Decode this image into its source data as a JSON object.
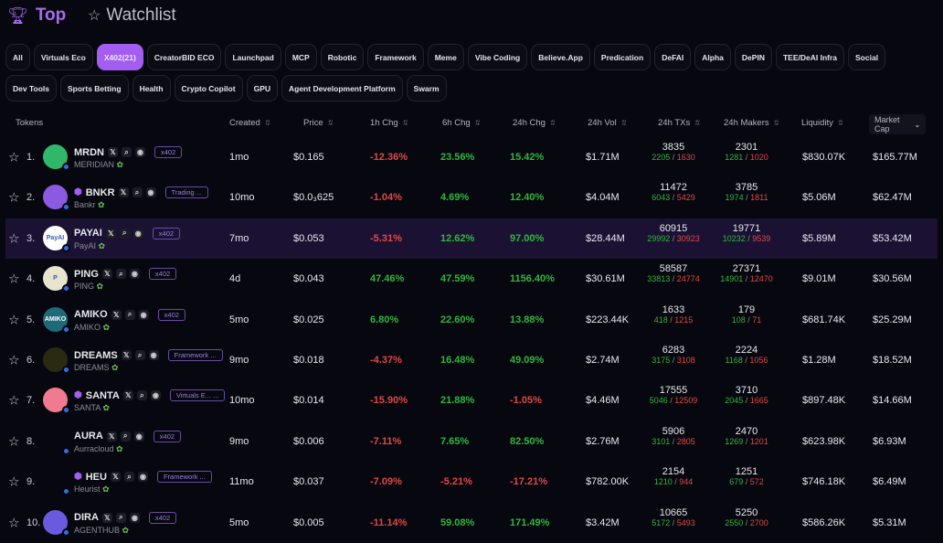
{
  "header": {
    "top_label": "Top",
    "watchlist_label": "Watchlist"
  },
  "tabs_row1": [
    "All",
    "Virtuals Eco",
    "X402(21)",
    "CreatorBID ECO",
    "Launchpad",
    "MCP",
    "Robotic",
    "Framework",
    "Meme",
    "Vibe Coding",
    "Believe.App",
    "Predication",
    "DeFAI",
    "Alpha",
    "DePIN",
    "TEE/DeAI Infra",
    "Social"
  ],
  "tabs_row2": [
    "Dev Tools",
    "Sports Betting",
    "Health",
    "Crypto Copilot",
    "GPU",
    "Agent Development Platform",
    "Swarm"
  ],
  "active_tab": "X402(21)",
  "columns": {
    "tokens": "Tokens",
    "created": "Created",
    "price": "Price",
    "h1": "1h Chg",
    "h6": "6h Chg",
    "h24": "24h Chg",
    "vol": "24h Vol",
    "txs": "24h TXs",
    "makers": "24h Makers",
    "liq": "Liquidity",
    "mcap": "Market Cap"
  },
  "colors": {
    "accent": "#a35df0",
    "up": "#2fb83c",
    "down": "#e04848",
    "highlight": "#1b1233"
  },
  "rows": [
    {
      "rank": "1.",
      "symbol": "MRDN",
      "name": "MERIDIAN",
      "verified": false,
      "tag": "x402",
      "created": "1mo",
      "price": "$0.165",
      "h1": "-12.36%",
      "h6": "23.56%",
      "h24": "15.42%",
      "vol": "$1.71M",
      "txs": "3835",
      "buys": "2205",
      "sells": "1630",
      "makers": "2301",
      "mb": "1281",
      "ms": "1020",
      "liq": "$830.07K",
      "mcap": "$165.77M",
      "logo_color": "#2fb86a",
      "logo_text": ""
    },
    {
      "rank": "2.",
      "symbol": "BNKR",
      "name": "Bankr",
      "verified": true,
      "tag": "Trading ...",
      "created": "10mo",
      "price": "$0.0₃625",
      "h1": "-1.04%",
      "h6": "4.69%",
      "h24": "12.40%",
      "vol": "$4.04M",
      "txs": "11472",
      "buys": "6043",
      "sells": "5429",
      "makers": "3785",
      "mb": "1974",
      "ms": "1811",
      "liq": "$5.06M",
      "mcap": "$62.47M",
      "logo_color": "#8a5ae0",
      "logo_text": ""
    },
    {
      "rank": "3.",
      "symbol": "PAYAI",
      "name": "PayAI",
      "verified": false,
      "tag": "x402",
      "created": "7mo",
      "price": "$0.053",
      "h1": "-5.31%",
      "h6": "12.62%",
      "h24": "97.00%",
      "vol": "$28.44M",
      "txs": "60915",
      "buys": "29992",
      "sells": "30923",
      "makers": "19771",
      "mb": "10232",
      "ms": "9539",
      "liq": "$5.89M",
      "mcap": "$53.42M",
      "logo_color": "#ffffff",
      "logo_text": "PayAI"
    },
    {
      "rank": "4.",
      "symbol": "PING",
      "name": "PING",
      "verified": false,
      "tag": "x402",
      "created": "4d",
      "price": "$0.043",
      "h1": "47.46%",
      "h6": "47.59%",
      "h24": "1156.40%",
      "vol": "$30.61M",
      "txs": "58587",
      "buys": "33813",
      "sells": "24774",
      "makers": "27371",
      "mb": "14901",
      "ms": "12470",
      "liq": "$9.01M",
      "mcap": "$30.56M",
      "logo_color": "#e8e4d0",
      "logo_text": "P"
    },
    {
      "rank": "5.",
      "symbol": "AMIKO",
      "name": "AMIKO",
      "verified": false,
      "tag": "x402",
      "created": "5mo",
      "price": "$0.025",
      "h1": "6.80%",
      "h6": "22.60%",
      "h24": "13.88%",
      "vol": "$223.44K",
      "txs": "1633",
      "buys": "418",
      "sells": "1215",
      "makers": "179",
      "mb": "108",
      "ms": "71",
      "liq": "$681.74K",
      "mcap": "$25.29M",
      "logo_color": "#1e6a78",
      "logo_text": "AMIKO"
    },
    {
      "rank": "6.",
      "symbol": "DREAMS",
      "name": "DREAMS",
      "verified": false,
      "tag": "Framework ...",
      "created": "9mo",
      "price": "$0.018",
      "h1": "-4.37%",
      "h6": "16.48%",
      "h24": "49.09%",
      "vol": "$2.74M",
      "txs": "6283",
      "buys": "3175",
      "sells": "3108",
      "makers": "2224",
      "mb": "1168",
      "ms": "1056",
      "liq": "$1.28M",
      "mcap": "$18.52M",
      "logo_color": "#2a2a10",
      "logo_text": ""
    },
    {
      "rank": "7.",
      "symbol": "SANTA",
      "name": "SANTA",
      "verified": true,
      "tag": "Virtuals E... ...",
      "created": "10mo",
      "price": "$0.014",
      "h1": "-15.90%",
      "h6": "21.88%",
      "h24": "-1.05%",
      "vol": "$4.46M",
      "txs": "17555",
      "buys": "5046",
      "sells": "12509",
      "makers": "3710",
      "mb": "2045",
      "ms": "1665",
      "liq": "$897.48K",
      "mcap": "$14.66M",
      "logo_color": "#f07a90",
      "logo_text": ""
    },
    {
      "rank": "8.",
      "symbol": "AURA",
      "name": "Aurracloud",
      "verified": false,
      "tag": "x402",
      "created": "9mo",
      "price": "$0.006",
      "h1": "-7.11%",
      "h6": "7.65%",
      "h24": "82.50%",
      "vol": "$2.76M",
      "txs": "5906",
      "buys": "3101",
      "sells": "2805",
      "makers": "2470",
      "mb": "1269",
      "ms": "1201",
      "liq": "$623.98K",
      "mcap": "$6.93M",
      "logo_color": "#07070f",
      "logo_text": ""
    },
    {
      "rank": "9.",
      "symbol": "HEU",
      "name": "Heurist",
      "verified": true,
      "tag": "Framework ...",
      "created": "11mo",
      "price": "$0.037",
      "h1": "-7.09%",
      "h6": "-5.21%",
      "h24": "-17.21%",
      "vol": "$782.00K",
      "txs": "2154",
      "buys": "1210",
      "sells": "944",
      "makers": "1251",
      "mb": "679",
      "ms": "572",
      "liq": "$746.18K",
      "mcap": "$6.49M",
      "logo_color": "#07070f",
      "logo_text": ""
    },
    {
      "rank": "10.",
      "symbol": "DIRA",
      "name": "AGENTHUB",
      "verified": false,
      "tag": "x402",
      "created": "5mo",
      "price": "$0.005",
      "h1": "-11.14%",
      "h6": "59.08%",
      "h24": "171.49%",
      "vol": "$3.42M",
      "txs": "10665",
      "buys": "5172",
      "sells": "5493",
      "makers": "5250",
      "mb": "2550",
      "ms": "2700",
      "liq": "$586.26K",
      "mcap": "$5.31M",
      "logo_color": "#6a5ae0",
      "logo_text": ""
    }
  ]
}
